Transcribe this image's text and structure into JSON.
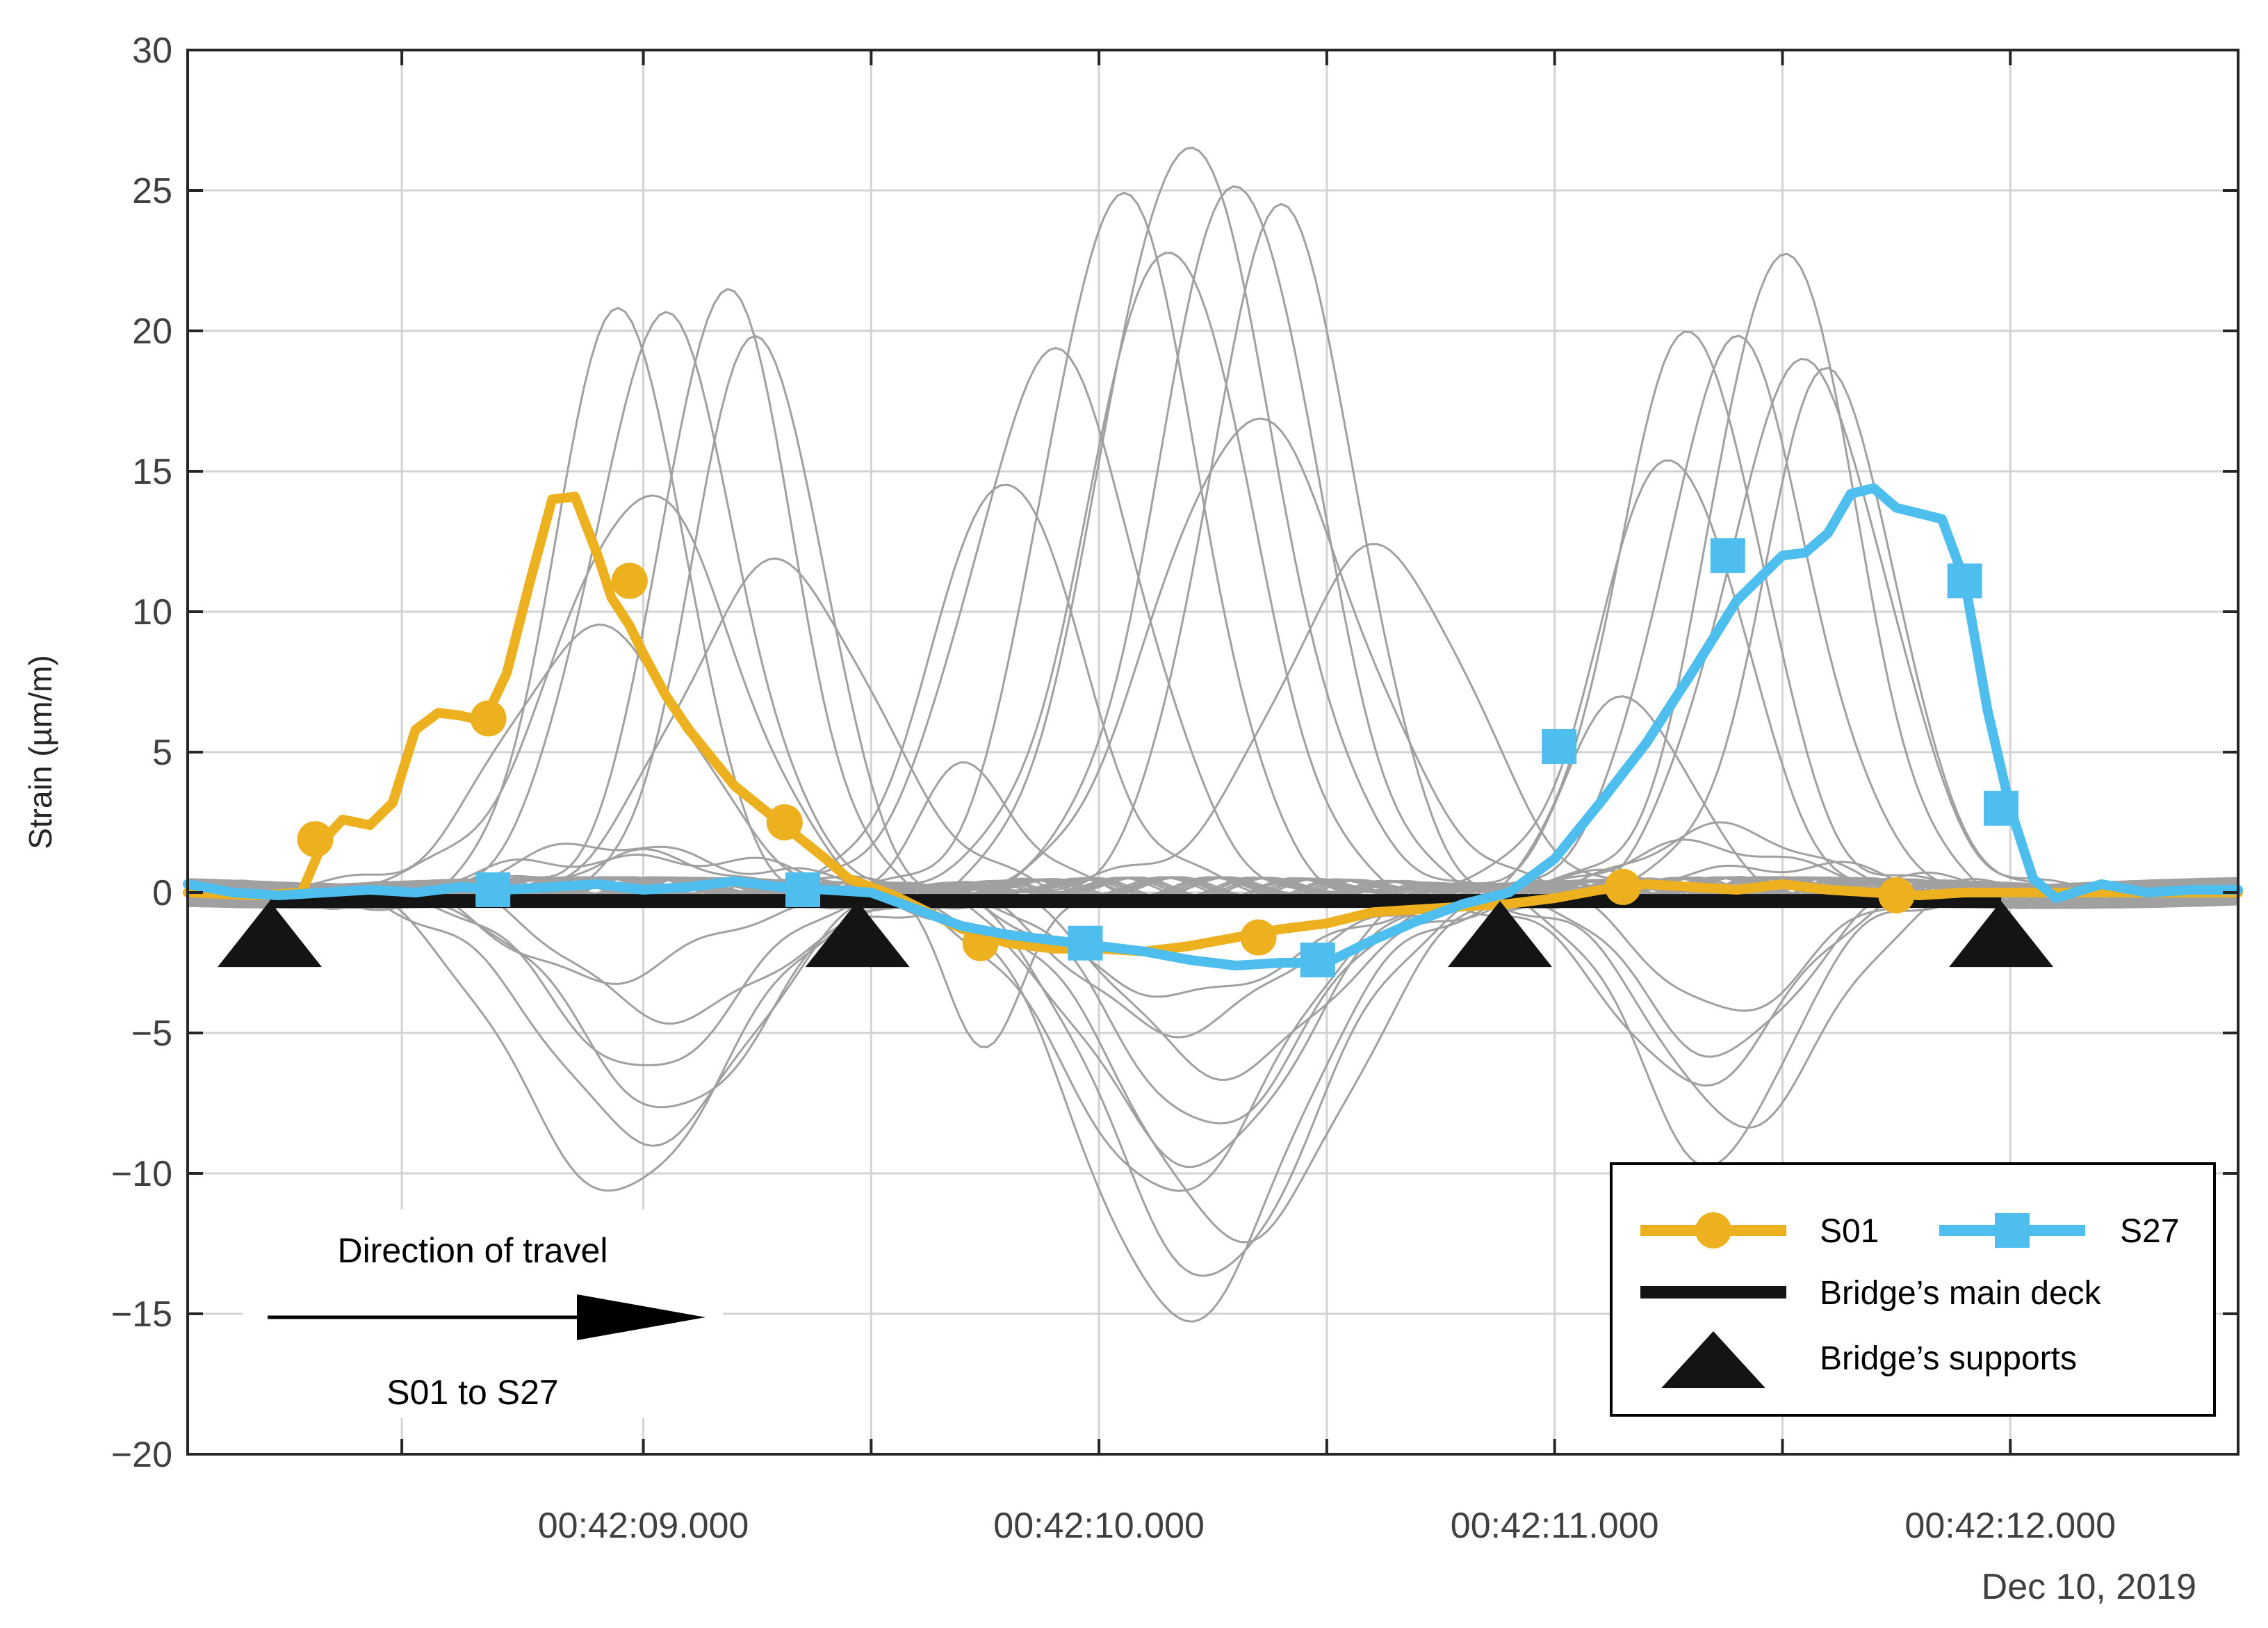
{
  "chart_data": {
    "type": "line",
    "title": "",
    "xlabel": "",
    "ylabel": "Strain (µm/m)",
    "date_label": "Dec 10, 2019",
    "xlim": [
      0,
      4.5
    ],
    "ylim": [
      -20,
      30
    ],
    "grid": true,
    "x_tick_values": [
      1,
      2,
      3,
      4
    ],
    "x_tick_labels": [
      "00:42:09.000",
      "00:42:10.000",
      "00:42:11.000",
      "00:42:12.000"
    ],
    "y_ticks": [
      -20,
      -15,
      -10,
      -5,
      0,
      5,
      10,
      15,
      20,
      25,
      30
    ],
    "y_tick_labels": [
      "−20",
      "−15",
      "−10",
      "−5",
      "0",
      "5",
      "10",
      "15",
      "20",
      "25",
      "30"
    ],
    "x_unit_note": "x is seconds after 00:42:08.030",
    "series": [
      {
        "name": "S01",
        "color": "#EDB120",
        "marker": "circle",
        "x": [
          0,
          0.15,
          0.25,
          0.3,
          0.34,
          0.4,
          0.45,
          0.5,
          0.55,
          0.6,
          0.65,
          0.7,
          0.75,
          0.8,
          0.85,
          0.9,
          0.93,
          0.97,
          1.0,
          1.05,
          1.1,
          1.2,
          1.3,
          1.4,
          1.45,
          1.55,
          1.6,
          1.7,
          1.8,
          1.9,
          2.0,
          2.1,
          2.2,
          2.3,
          2.4,
          2.5,
          2.6,
          2.7,
          2.8,
          2.9,
          3.0,
          3.1,
          3.2,
          3.3,
          3.4,
          3.5,
          3.6,
          3.7,
          3.8,
          3.9,
          4.0,
          4.1,
          4.2,
          4.3,
          4.4,
          4.5
        ],
        "y": [
          0,
          -0.1,
          0,
          1.9,
          2.6,
          2.4,
          3.2,
          5.8,
          6.4,
          6.3,
          6.1,
          7.8,
          11,
          14.0,
          14.1,
          12.0,
          10.5,
          9.5,
          8.5,
          7.0,
          5.8,
          3.8,
          2.5,
          1.2,
          0.5,
          -0.1,
          -0.5,
          -1.3,
          -1.8,
          -2.0,
          -2.0,
          -2.1,
          -1.9,
          -1.6,
          -1.3,
          -1.1,
          -0.7,
          -0.6,
          -0.5,
          -0.4,
          -0.2,
          0.1,
          0.3,
          0.2,
          0.1,
          0.3,
          0.1,
          0,
          -0.1,
          0,
          0,
          0,
          0,
          0,
          0,
          0
        ],
        "marker_points": [
          [
            0.28,
            1.9
          ],
          [
            0.66,
            6.2
          ],
          [
            0.97,
            11.1
          ],
          [
            1.31,
            2.5
          ],
          [
            1.74,
            -1.8
          ],
          [
            2.35,
            -1.6
          ],
          [
            3.15,
            0.2
          ],
          [
            3.75,
            -0.1
          ]
        ]
      },
      {
        "name": "S27",
        "color": "#4DBEEE",
        "marker": "square",
        "x": [
          0,
          0.1,
          0.2,
          0.3,
          0.4,
          0.5,
          0.6,
          0.7,
          0.8,
          0.9,
          1.0,
          1.1,
          1.2,
          1.3,
          1.4,
          1.5,
          1.6,
          1.7,
          1.8,
          1.9,
          2.0,
          2.1,
          2.2,
          2.3,
          2.4,
          2.5,
          2.6,
          2.7,
          2.8,
          2.9,
          3.0,
          3.1,
          3.2,
          3.3,
          3.4,
          3.5,
          3.55,
          3.6,
          3.65,
          3.7,
          3.75,
          3.8,
          3.85,
          3.9,
          3.95,
          4.0,
          4.05,
          4.1,
          4.2,
          4.3,
          4.4,
          4.5
        ],
        "y": [
          0.3,
          0,
          -0.1,
          0,
          0.1,
          0,
          0.2,
          0.1,
          0.2,
          0.3,
          0.1,
          0.2,
          0.4,
          0.2,
          0.1,
          0,
          -0.6,
          -1.2,
          -1.5,
          -1.7,
          -1.9,
          -2.1,
          -2.4,
          -2.6,
          -2.5,
          -2.5,
          -1.7,
          -1.0,
          -0.4,
          0,
          1.2,
          3.2,
          5.3,
          7.8,
          10.4,
          12.0,
          12.1,
          12.8,
          14.2,
          14.4,
          13.7,
          13.5,
          13.3,
          11.1,
          6.5,
          3.0,
          0.5,
          -0.2,
          0.3,
          0,
          0.1,
          0.1
        ],
        "marker_points": [
          [
            0.67,
            0.1
          ],
          [
            1.35,
            0.1
          ],
          [
            1.97,
            -1.8
          ],
          [
            2.48,
            -2.4
          ],
          [
            3.01,
            5.2
          ],
          [
            3.38,
            12.0
          ],
          [
            3.9,
            11.1
          ],
          [
            3.98,
            3.0
          ]
        ]
      }
    ],
    "background_series_note": "Remaining sensor strain traces drawn in grey",
    "background_color": "#A0A0A0",
    "deck": {
      "label": "Bridge's main deck",
      "y": -0.3,
      "x_range": [
        0.18,
        3.98
      ],
      "color": "#141414"
    },
    "supports": {
      "label": "Bridge's supports",
      "x": [
        0.18,
        1.47,
        2.88,
        3.98
      ]
    },
    "legend": {
      "position": "bottom-right",
      "entries": [
        "S01",
        "S27",
        "Bridge’s main deck",
        "Bridge’s supports"
      ]
    },
    "annotation": {
      "top": "Direction of travel",
      "bottom": "S01 to S27"
    }
  }
}
